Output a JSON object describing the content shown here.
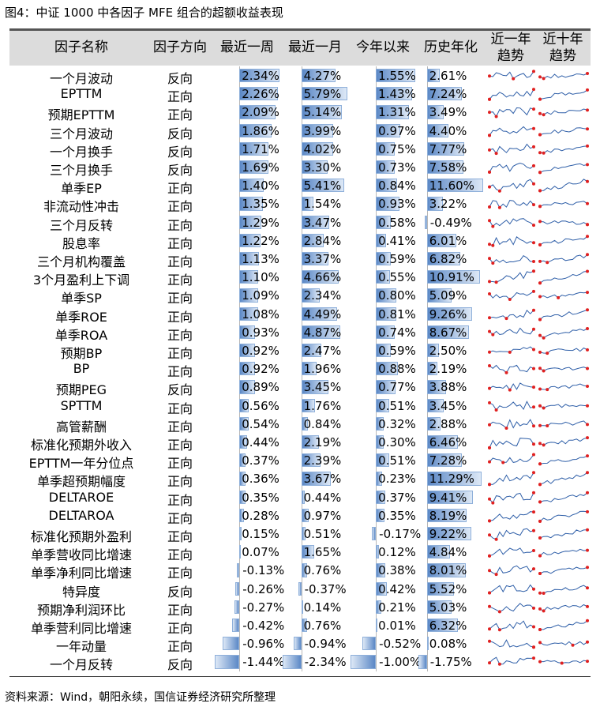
{
  "title": "图4：中证 1000 中各因子 MFE 组合的超额收益表现",
  "source": "资料来源：Wind，朝阳永续，国信证券经济研究所整理",
  "colors": {
    "bar": "#5b88c6",
    "spark_line": "#2f5fa8",
    "spark_point": "#e02020",
    "header_bg": "#dcdcdc"
  },
  "chart_data": {
    "type": "table",
    "columns": [
      "因子名称",
      "因子方向",
      "最近一周",
      "最近一月",
      "今年以来",
      "历史年化",
      "近一年趋势",
      "近十年趋势"
    ],
    "rows": [
      {
        "name": "一个月波动",
        "dir": "反向",
        "w": "2.34%",
        "m": "4.27%",
        "y": "1.55%",
        "h": "2.61%",
        "wv": 2.34,
        "mv": 4.27,
        "yv": 1.55,
        "hv": 2.61
      },
      {
        "name": "EPTTM",
        "dir": "正向",
        "w": "2.26%",
        "m": "5.79%",
        "y": "1.43%",
        "h": "7.24%",
        "wv": 2.26,
        "mv": 5.79,
        "yv": 1.43,
        "hv": 7.24
      },
      {
        "name": "预期EPTTM",
        "dir": "正向",
        "w": "2.09%",
        "m": "5.14%",
        "y": "1.31%",
        "h": "3.49%",
        "wv": 2.09,
        "mv": 5.14,
        "yv": 1.31,
        "hv": 3.49
      },
      {
        "name": "三个月波动",
        "dir": "反向",
        "w": "1.86%",
        "m": "3.99%",
        "y": "0.97%",
        "h": "4.40%",
        "wv": 1.86,
        "mv": 3.99,
        "yv": 0.97,
        "hv": 4.4
      },
      {
        "name": "一个月换手",
        "dir": "反向",
        "w": "1.71%",
        "m": "4.02%",
        "y": "0.75%",
        "h": "7.77%",
        "wv": 1.71,
        "mv": 4.02,
        "yv": 0.75,
        "hv": 7.77
      },
      {
        "name": "三个月换手",
        "dir": "反向",
        "w": "1.69%",
        "m": "3.30%",
        "y": "0.73%",
        "h": "7.58%",
        "wv": 1.69,
        "mv": 3.3,
        "yv": 0.73,
        "hv": 7.58
      },
      {
        "name": "单季EP",
        "dir": "正向",
        "w": "1.40%",
        "m": "5.41%",
        "y": "0.84%",
        "h": "11.60%",
        "wv": 1.4,
        "mv": 5.41,
        "yv": 0.84,
        "hv": 11.6
      },
      {
        "name": "非流动性冲击",
        "dir": "正向",
        "w": "1.35%",
        "m": "1.54%",
        "y": "0.93%",
        "h": "3.22%",
        "wv": 1.35,
        "mv": 1.54,
        "yv": 0.93,
        "hv": 3.22
      },
      {
        "name": "三个月反转",
        "dir": "正向",
        "w": "1.29%",
        "m": "3.47%",
        "y": "0.58%",
        "h": "-0.49%",
        "wv": 1.29,
        "mv": 3.47,
        "yv": 0.58,
        "hv": -0.49
      },
      {
        "name": "股息率",
        "dir": "正向",
        "w": "1.22%",
        "m": "2.84%",
        "y": "0.41%",
        "h": "6.01%",
        "wv": 1.22,
        "mv": 2.84,
        "yv": 0.41,
        "hv": 6.01
      },
      {
        "name": "三个月机构覆盖",
        "dir": "正向",
        "w": "1.13%",
        "m": "3.37%",
        "y": "0.59%",
        "h": "6.82%",
        "wv": 1.13,
        "mv": 3.37,
        "yv": 0.59,
        "hv": 6.82
      },
      {
        "name": "3个月盈利上下调",
        "dir": "正向",
        "w": "1.10%",
        "m": "4.66%",
        "y": "0.55%",
        "h": "10.91%",
        "wv": 1.1,
        "mv": 4.66,
        "yv": 0.55,
        "hv": 10.91
      },
      {
        "name": "单季SP",
        "dir": "正向",
        "w": "1.09%",
        "m": "2.34%",
        "y": "0.80%",
        "h": "5.09%",
        "wv": 1.09,
        "mv": 2.34,
        "yv": 0.8,
        "hv": 5.09
      },
      {
        "name": "单季ROE",
        "dir": "正向",
        "w": "1.08%",
        "m": "4.49%",
        "y": "0.81%",
        "h": "9.26%",
        "wv": 1.08,
        "mv": 4.49,
        "yv": 0.81,
        "hv": 9.26
      },
      {
        "name": "单季ROA",
        "dir": "正向",
        "w": "0.93%",
        "m": "4.87%",
        "y": "0.74%",
        "h": "8.67%",
        "wv": 0.93,
        "mv": 4.87,
        "yv": 0.74,
        "hv": 8.67
      },
      {
        "name": "预期BP",
        "dir": "正向",
        "w": "0.92%",
        "m": "2.47%",
        "y": "0.59%",
        "h": "2.50%",
        "wv": 0.92,
        "mv": 2.47,
        "yv": 0.59,
        "hv": 2.5
      },
      {
        "name": "BP",
        "dir": "正向",
        "w": "0.92%",
        "m": "1.96%",
        "y": "0.88%",
        "h": "2.19%",
        "wv": 0.92,
        "mv": 1.96,
        "yv": 0.88,
        "hv": 2.19
      },
      {
        "name": "预期PEG",
        "dir": "反向",
        "w": "0.89%",
        "m": "3.45%",
        "y": "0.77%",
        "h": "3.88%",
        "wv": 0.89,
        "mv": 3.45,
        "yv": 0.77,
        "hv": 3.88
      },
      {
        "name": "SPTTM",
        "dir": "正向",
        "w": "0.56%",
        "m": "1.76%",
        "y": "0.51%",
        "h": "3.45%",
        "wv": 0.56,
        "mv": 1.76,
        "yv": 0.51,
        "hv": 3.45
      },
      {
        "name": "高管薪酬",
        "dir": "正向",
        "w": "0.54%",
        "m": "0.84%",
        "y": "0.32%",
        "h": "2.88%",
        "wv": 0.54,
        "mv": 0.84,
        "yv": 0.32,
        "hv": 2.88
      },
      {
        "name": "标准化预期外收入",
        "dir": "正向",
        "w": "0.44%",
        "m": "2.19%",
        "y": "0.30%",
        "h": "6.46%",
        "wv": 0.44,
        "mv": 2.19,
        "yv": 0.3,
        "hv": 6.46
      },
      {
        "name": "EPTTM一年分位点",
        "dir": "正向",
        "w": "0.37%",
        "m": "2.39%",
        "y": "0.51%",
        "h": "7.28%",
        "wv": 0.37,
        "mv": 2.39,
        "yv": 0.51,
        "hv": 7.28
      },
      {
        "name": "单季超预期幅度",
        "dir": "正向",
        "w": "0.36%",
        "m": "3.67%",
        "y": "0.23%",
        "h": "11.29%",
        "wv": 0.36,
        "mv": 3.67,
        "yv": 0.23,
        "hv": 11.29
      },
      {
        "name": "DELTAROE",
        "dir": "正向",
        "w": "0.35%",
        "m": "0.44%",
        "y": "0.37%",
        "h": "9.41%",
        "wv": 0.35,
        "mv": 0.44,
        "yv": 0.37,
        "hv": 9.41
      },
      {
        "name": "DELTAROA",
        "dir": "正向",
        "w": "0.28%",
        "m": "0.97%",
        "y": "0.35%",
        "h": "8.19%",
        "wv": 0.28,
        "mv": 0.97,
        "yv": 0.35,
        "hv": 8.19
      },
      {
        "name": "标准化预期外盈利",
        "dir": "正向",
        "w": "0.15%",
        "m": "0.51%",
        "y": "-0.17%",
        "h": "9.22%",
        "wv": 0.15,
        "mv": 0.51,
        "yv": -0.17,
        "hv": 9.22
      },
      {
        "name": "单季营收同比增速",
        "dir": "正向",
        "w": "0.07%",
        "m": "1.65%",
        "y": "0.12%",
        "h": "4.84%",
        "wv": 0.07,
        "mv": 1.65,
        "yv": 0.12,
        "hv": 4.84
      },
      {
        "name": "单季净利同比增速",
        "dir": "正向",
        "w": "-0.13%",
        "m": "0.76%",
        "y": "0.38%",
        "h": "8.01%",
        "wv": -0.13,
        "mv": 0.76,
        "yv": 0.38,
        "hv": 8.01
      },
      {
        "name": "特异度",
        "dir": "反向",
        "w": "-0.26%",
        "m": "-0.37%",
        "y": "0.42%",
        "h": "5.52%",
        "wv": -0.26,
        "mv": -0.37,
        "yv": 0.42,
        "hv": 5.52
      },
      {
        "name": "预期净利润环比",
        "dir": "正向",
        "w": "-0.27%",
        "m": "0.14%",
        "y": "0.21%",
        "h": "5.03%",
        "wv": -0.27,
        "mv": 0.14,
        "yv": 0.21,
        "hv": 5.03
      },
      {
        "name": "单季营利同比增速",
        "dir": "正向",
        "w": "-0.42%",
        "m": "0.76%",
        "y": "0.01%",
        "h": "6.32%",
        "wv": -0.42,
        "mv": 0.76,
        "yv": 0.01,
        "hv": 6.32
      },
      {
        "name": "一年动量",
        "dir": "正向",
        "w": "-0.96%",
        "m": "-0.94%",
        "y": "-0.52%",
        "h": "0.08%",
        "wv": -0.96,
        "mv": -0.94,
        "yv": -0.52,
        "hv": 0.08
      },
      {
        "name": "一个月反转",
        "dir": "反向",
        "w": "-1.44%",
        "m": "-2.34%",
        "y": "-1.00%",
        "h": "-1.75%",
        "wv": -1.44,
        "mv": -2.34,
        "yv": -1.0,
        "hv": -1.75
      }
    ]
  }
}
